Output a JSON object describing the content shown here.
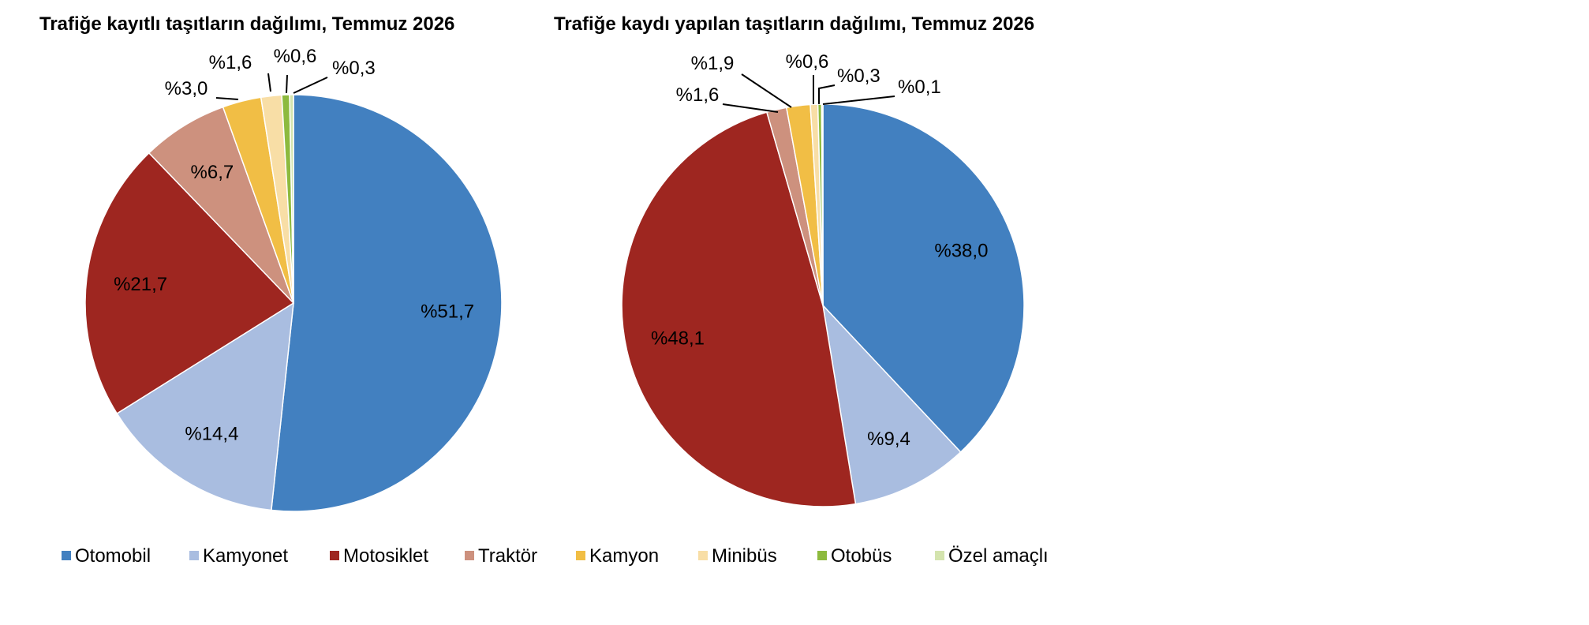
{
  "legend": [
    {
      "label": "Otomobil",
      "color": "#4280C0"
    },
    {
      "label": "Kamyonet",
      "color": "#A9BDE0"
    },
    {
      "label": "Motosiklet",
      "color": "#9E2620"
    },
    {
      "label": "Traktör",
      "color": "#CD917E"
    },
    {
      "label": "Kamyon",
      "color": "#F1BE45"
    },
    {
      "label": "Minibüs",
      "color": "#F8DEA6"
    },
    {
      "label": "Otobüs",
      "color": "#8DBA3E"
    },
    {
      "label": "Özel amaçlı",
      "color": "#D4E4AE"
    }
  ],
  "chart_data": [
    {
      "type": "pie",
      "title": "Trafiğe kayıtlı taşıtların dağılımı, Temmuz 2026",
      "categories": [
        "Otomobil",
        "Kamyonet",
        "Motosiklet",
        "Traktör",
        "Kamyon",
        "Minibüs",
        "Otobüs",
        "Özel amaçlı"
      ],
      "values": [
        51.7,
        14.4,
        21.7,
        6.7,
        3.0,
        1.6,
        0.6,
        0.3
      ],
      "labels": [
        "%51,7",
        "%14,4",
        "%21,7",
        "%6,7",
        "%3,0",
        "%1,6",
        "%0,6",
        "%0,3"
      ],
      "legend_position": "bottom"
    },
    {
      "type": "pie",
      "title": "Trafiğe kaydı yapılan taşıtların dağılımı, Temmuz 2026",
      "categories": [
        "Otomobil",
        "Kamyonet",
        "Motosiklet",
        "Traktör",
        "Kamyon",
        "Minibüs",
        "Otobüs",
        "Özel amaçlı"
      ],
      "values": [
        38.0,
        9.4,
        48.1,
        1.6,
        1.9,
        0.6,
        0.3,
        0.1
      ],
      "labels": [
        "%38,0",
        "%9,4",
        "%48,1",
        "%1,6",
        "%1,9",
        "%0,6",
        "%0,3",
        "%0,1"
      ],
      "legend_position": "bottom"
    }
  ]
}
